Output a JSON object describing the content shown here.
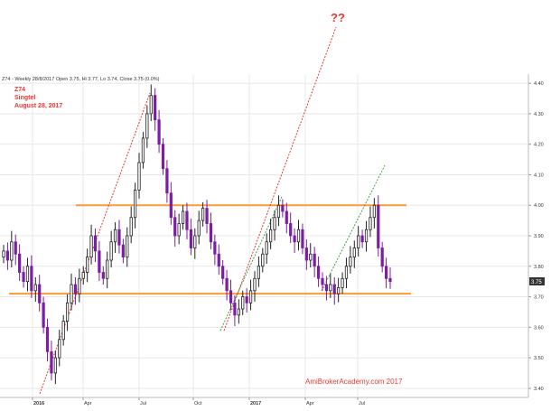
{
  "header": {
    "info": "Z74 - Weekly 28/8/2017 Open 3.75, Hi 3.77, Lo 3.74, Close 3.75 (0.0%)"
  },
  "annotations": {
    "ticker": "Z74",
    "name": "Singtel",
    "date": "August 28, 2017",
    "question": "??",
    "watermark": "AmiBrokerAcademy.com  2017"
  },
  "colors": {
    "up_candle": "#ffffff",
    "down_candle": "#7b1fa2",
    "support_resistance": "#ff9933",
    "trend_red": "#e53935",
    "trend_green": "#43a047",
    "annotation_text": "#e53935",
    "current_price_badge": "#333333"
  },
  "current_price_label": "3.75",
  "chart_data": {
    "type": "candlestick",
    "title": "Z74 - Weekly",
    "x_tick_labels": [
      "2016",
      "Apr",
      "Jul",
      "Oct",
      "2017",
      "Apr",
      "Jul"
    ],
    "y_ticks": [
      3.4,
      3.5,
      3.6,
      3.7,
      3.8,
      3.9,
      4.0,
      4.1,
      4.2,
      4.3,
      4.4
    ],
    "y_tick_labels": [
      "3.40",
      "3.50",
      "3.60",
      "3.70",
      "3.80",
      "3.90",
      "4.00",
      "4.10",
      "4.20",
      "4.30",
      "4.40"
    ],
    "ylim": [
      3.37,
      4.43
    ],
    "grid": true,
    "horizontal_levels": [
      3.71,
      4.0
    ],
    "candles_close": [
      3.85,
      3.82,
      3.88,
      3.84,
      3.78,
      3.75,
      3.8,
      3.72,
      3.74,
      3.68,
      3.6,
      3.52,
      3.45,
      3.5,
      3.56,
      3.62,
      3.68,
      3.74,
      3.71,
      3.76,
      3.78,
      3.83,
      3.9,
      3.85,
      3.78,
      3.76,
      3.82,
      3.88,
      3.92,
      3.87,
      3.83,
      3.9,
      3.96,
      4.05,
      4.14,
      4.22,
      4.3,
      4.36,
      4.28,
      4.2,
      4.12,
      4.04,
      3.96,
      3.9,
      3.94,
      3.98,
      3.92,
      3.86,
      3.9,
      3.95,
      3.99,
      3.94,
      3.88,
      3.84,
      3.8,
      3.76,
      3.72,
      3.68,
      3.64,
      3.66,
      3.7,
      3.68,
      3.72,
      3.76,
      3.8,
      3.84,
      3.88,
      3.92,
      3.96,
      4.0,
      3.98,
      3.94,
      3.9,
      3.88,
      3.92,
      3.86,
      3.82,
      3.84,
      3.8,
      3.76,
      3.74,
      3.72,
      3.74,
      3.71,
      3.73,
      3.76,
      3.8,
      3.83,
      3.86,
      3.9,
      3.88,
      3.92,
      3.96,
      4.0,
      3.86,
      3.8,
      3.76,
      3.75
    ],
    "legend": "none"
  }
}
